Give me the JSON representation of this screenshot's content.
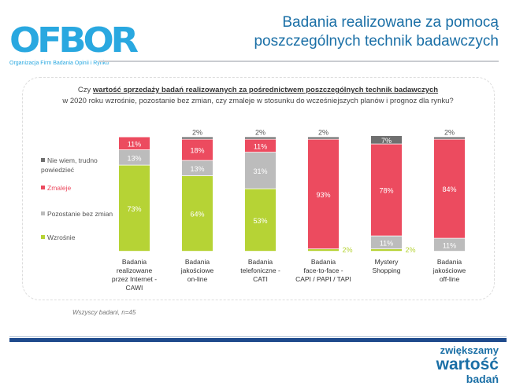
{
  "logo": {
    "mark": "OFBOR",
    "subtitle": "Organizacja Firm Badania Opinii i Rynku"
  },
  "title": {
    "line1": "Badania realizowane za pomocą",
    "line2": "poszczególnych technik badawczych"
  },
  "question": {
    "prefix": "Czy ",
    "emphasis": "wartość sprzedaży badań realizowanych za pośrednictwem poszczególnych technik badawczych",
    "line2": "w 2020 roku wzrośnie, pozostanie bez zmian, czy zmaleje w stosunku do wcześniejszych planów i prognoz dla rynku?"
  },
  "note": "Wszyscy badani, n=45",
  "slogan": {
    "line1": "zwiększamy",
    "line2": "wartość",
    "line3": "badań"
  },
  "chart_data": {
    "type": "bar",
    "stacked": true,
    "categories": [
      "Badania realizowane przez Internet - CAWI",
      "Badania jakościowe on-line",
      "Badania telefoniczne - CATI",
      "Badania face-to-face - CAPI / PAPI / TAPI",
      "Mystery Shopping",
      "Badania jakościowe off-line"
    ],
    "category_lines": [
      [
        "Badania",
        "realizowane",
        "przez Internet -",
        "CAWI"
      ],
      [
        "Badania",
        "jakościowe",
        "on-line"
      ],
      [
        "Badania",
        "telefoniczne -",
        "CATI"
      ],
      [
        "Badania",
        "face-to-face -",
        "CAPI / PAPI / TAPI"
      ],
      [
        "Mystery",
        "Shopping"
      ],
      [
        "Badania",
        "jakościowe",
        "off-line"
      ]
    ],
    "series": [
      {
        "name": "Wzrośnie",
        "color": "#b6d335",
        "values": [
          73,
          64,
          53,
          2,
          2,
          0
        ]
      },
      {
        "name": "Pozostanie bez zmian",
        "color": "#bcbcbc",
        "values": [
          13,
          13,
          31,
          0,
          11,
          11
        ]
      },
      {
        "name": "Zmaleje",
        "color": "#ec4b5f",
        "values": [
          11,
          18,
          11,
          93,
          78,
          84
        ]
      },
      {
        "name": "Nie wiem, trudno powiedzieć",
        "color": "#6f6f6f",
        "values": [
          0,
          2,
          2,
          2,
          7,
          2
        ]
      }
    ],
    "legend_order": [
      "Nie wiem, trudno powiedzieć",
      "Zmaleje",
      "Pozostanie bez zmian",
      "Wzrośnie"
    ],
    "value_format": "%",
    "legend": "left",
    "grid": false
  }
}
